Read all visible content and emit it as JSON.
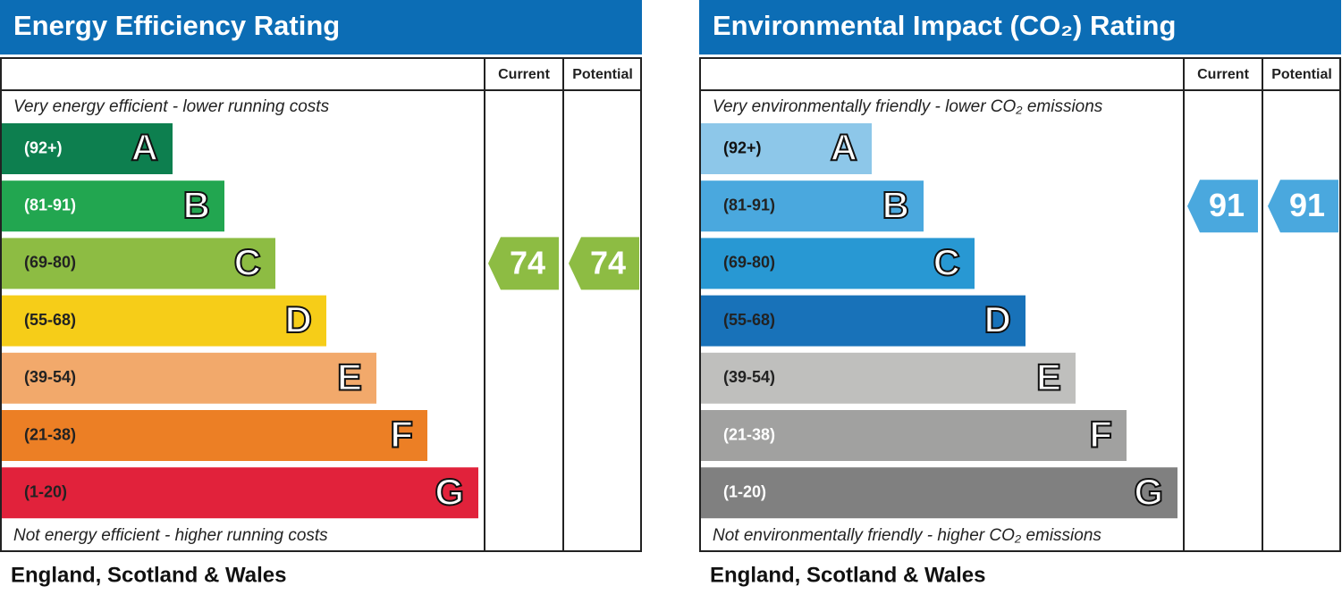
{
  "panels": [
    {
      "title": "Energy Efficiency Rating",
      "current_header": "Current",
      "potential_header": "Potential",
      "top_note": "Very energy efficient - lower running costs",
      "bottom_note": "Not energy efficient - higher running costs",
      "bands": [
        {
          "range": "(92+)",
          "letter": "A",
          "color": "#0d7f4f",
          "text_color": "#ffffff"
        },
        {
          "range": "(81-91)",
          "letter": "B",
          "color": "#22a650",
          "text_color": "#ffffff"
        },
        {
          "range": "(69-80)",
          "letter": "C",
          "color": "#8dbc43",
          "text_color": "#222222"
        },
        {
          "range": "(55-68)",
          "letter": "D",
          "color": "#f6cd18",
          "text_color": "#222222"
        },
        {
          "range": "(39-54)",
          "letter": "E",
          "color": "#f2a96b",
          "text_color": "#222222"
        },
        {
          "range": "(21-38)",
          "letter": "F",
          "color": "#ec7f25",
          "text_color": "#222222"
        },
        {
          "range": "(1-20)",
          "letter": "G",
          "color": "#e1223b",
          "text_color": "#222222"
        }
      ],
      "current": 74,
      "potential": 74,
      "footer": "England, Scotland & Wales"
    },
    {
      "title": "Environmental Impact (CO₂) Rating",
      "current_header": "Current",
      "potential_header": "Potential",
      "top_note": "Very environmentally friendly - lower CO₂ emissions",
      "bottom_note": "Not environmentally friendly - higher CO₂ emissions",
      "bands": [
        {
          "range": "(92+)",
          "letter": "A",
          "color": "#8dc7e9",
          "text_color": "#111111"
        },
        {
          "range": "(81-91)",
          "letter": "B",
          "color": "#4aa8de",
          "text_color": "#222222"
        },
        {
          "range": "(69-80)",
          "letter": "C",
          "color": "#2898d3",
          "text_color": "#222222"
        },
        {
          "range": "(55-68)",
          "letter": "D",
          "color": "#1872b9",
          "text_color": "#222222"
        },
        {
          "range": "(39-54)",
          "letter": "E",
          "color": "#bfbfbd",
          "text_color": "#222222"
        },
        {
          "range": "(21-38)",
          "letter": "F",
          "color": "#a1a1a0",
          "text_color": "#ffffff"
        },
        {
          "range": "(1-20)",
          "letter": "G",
          "color": "#808080",
          "text_color": "#ffffff"
        }
      ],
      "current": 91,
      "potential": 91,
      "footer": "England, Scotland & Wales"
    }
  ]
}
